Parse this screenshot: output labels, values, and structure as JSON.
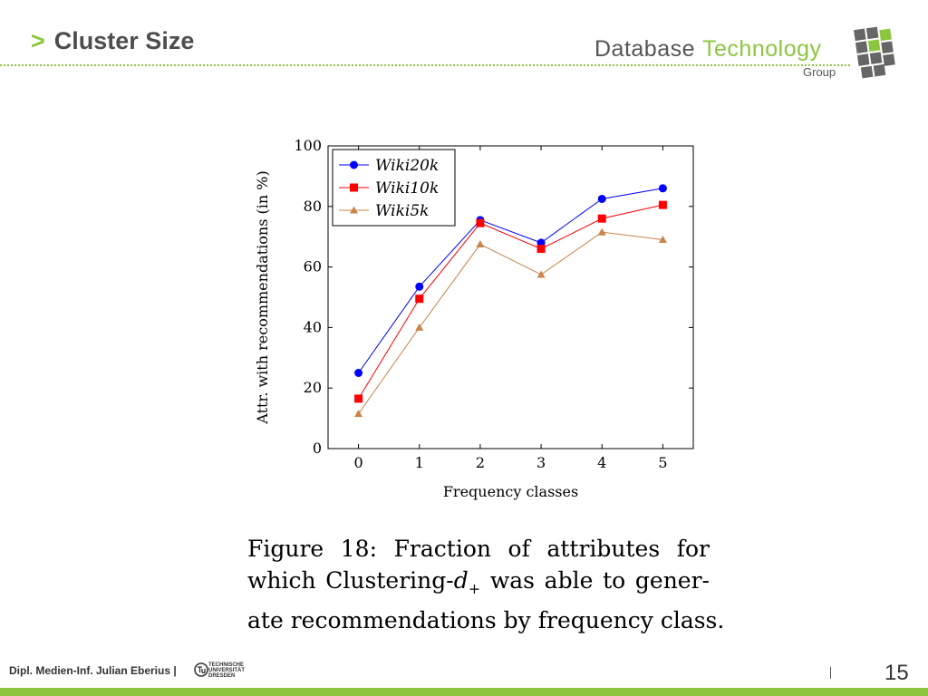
{
  "header": {
    "chevron": ">",
    "title": "Cluster Size",
    "brand_word1": "Database",
    "brand_word2": "Technology",
    "brand_sub": "Group"
  },
  "chart_data": {
    "type": "line",
    "x": [
      0,
      1,
      2,
      3,
      4,
      5
    ],
    "xlabel": "Frequency classes",
    "ylabel": "Attr. with recommendations (in %)",
    "xlim": [
      -0.5,
      5.5
    ],
    "ylim": [
      0,
      100
    ],
    "xticks": [
      "0",
      "1",
      "2",
      "3",
      "4",
      "5"
    ],
    "yticks": [
      "0",
      "20",
      "40",
      "60",
      "80",
      "100"
    ],
    "grid": false,
    "legend_position": "top-left",
    "series": [
      {
        "name": "Wiki20k",
        "values": [
          25,
          53.5,
          75.5,
          68,
          82.5,
          86
        ],
        "color": "#0000ff",
        "marker": "circle"
      },
      {
        "name": "Wiki10k",
        "values": [
          16.5,
          49.5,
          74.5,
          66,
          76,
          80.5
        ],
        "color": "#ff0000",
        "marker": "square"
      },
      {
        "name": "Wiki5k",
        "values": [
          11.5,
          40,
          67.5,
          57.5,
          71.5,
          69
        ],
        "color": "#c8844a",
        "marker": "triangle"
      }
    ]
  },
  "caption": {
    "line1": "Figure 18:  Fraction of attributes for",
    "line2_a": "which Clustering-",
    "line2_var": "d",
    "line2_sub": "+",
    "line2_b": " was able to gener-",
    "line3": "ate recommendations by frequency class."
  },
  "footer": {
    "author": "Dipl. Medien-Inf. Julian Eberius |",
    "tu_line1": "TECHNISCHE",
    "tu_line2": "UNIVERSITÄT",
    "tu_line3": "DRESDEN",
    "page_number": "15"
  }
}
